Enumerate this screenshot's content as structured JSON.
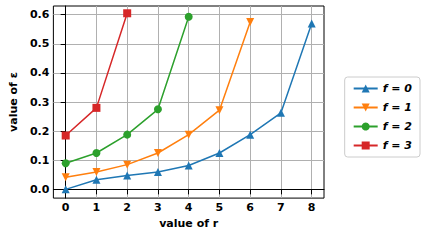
{
  "chart_data": {
    "type": "line",
    "x_label": "value of r",
    "y_label": "value of ε",
    "x": [
      0,
      1,
      2,
      3,
      4,
      5,
      6,
      7,
      8
    ],
    "series": [
      {
        "name": "f = 0",
        "color": "#1f77b4",
        "marker": "triangle",
        "values": [
          0.0,
          0.033,
          0.048,
          0.06,
          0.082,
          0.125,
          0.188,
          0.263,
          0.57
        ]
      },
      {
        "name": "f = 1",
        "color": "#ff7f0e",
        "marker": "triangle-down",
        "values": [
          0.042,
          0.06,
          0.085,
          0.125,
          0.188,
          0.272,
          0.575,
          null,
          null
        ]
      },
      {
        "name": "f = 2",
        "color": "#2ca02c",
        "marker": "circle",
        "values": [
          0.09,
          0.125,
          0.188,
          0.275,
          0.593,
          null,
          null,
          null,
          null
        ]
      },
      {
        "name": "f = 3",
        "color": "#d62728",
        "marker": "square",
        "values": [
          0.185,
          0.28,
          0.605,
          null,
          null,
          null,
          null,
          null,
          null
        ]
      }
    ],
    "xlim": [
      -0.4,
      8.4
    ],
    "xticks": [
      0,
      1,
      2,
      3,
      4,
      5,
      6,
      7,
      8
    ],
    "ylim": [
      -0.03,
      0.63
    ],
    "yticks": [
      {
        "value": 0,
        "label": "0.0"
      },
      0.1,
      0.2,
      0.3,
      0.4,
      0.5,
      0.6
    ],
    "grid": true,
    "legend": "right"
  }
}
